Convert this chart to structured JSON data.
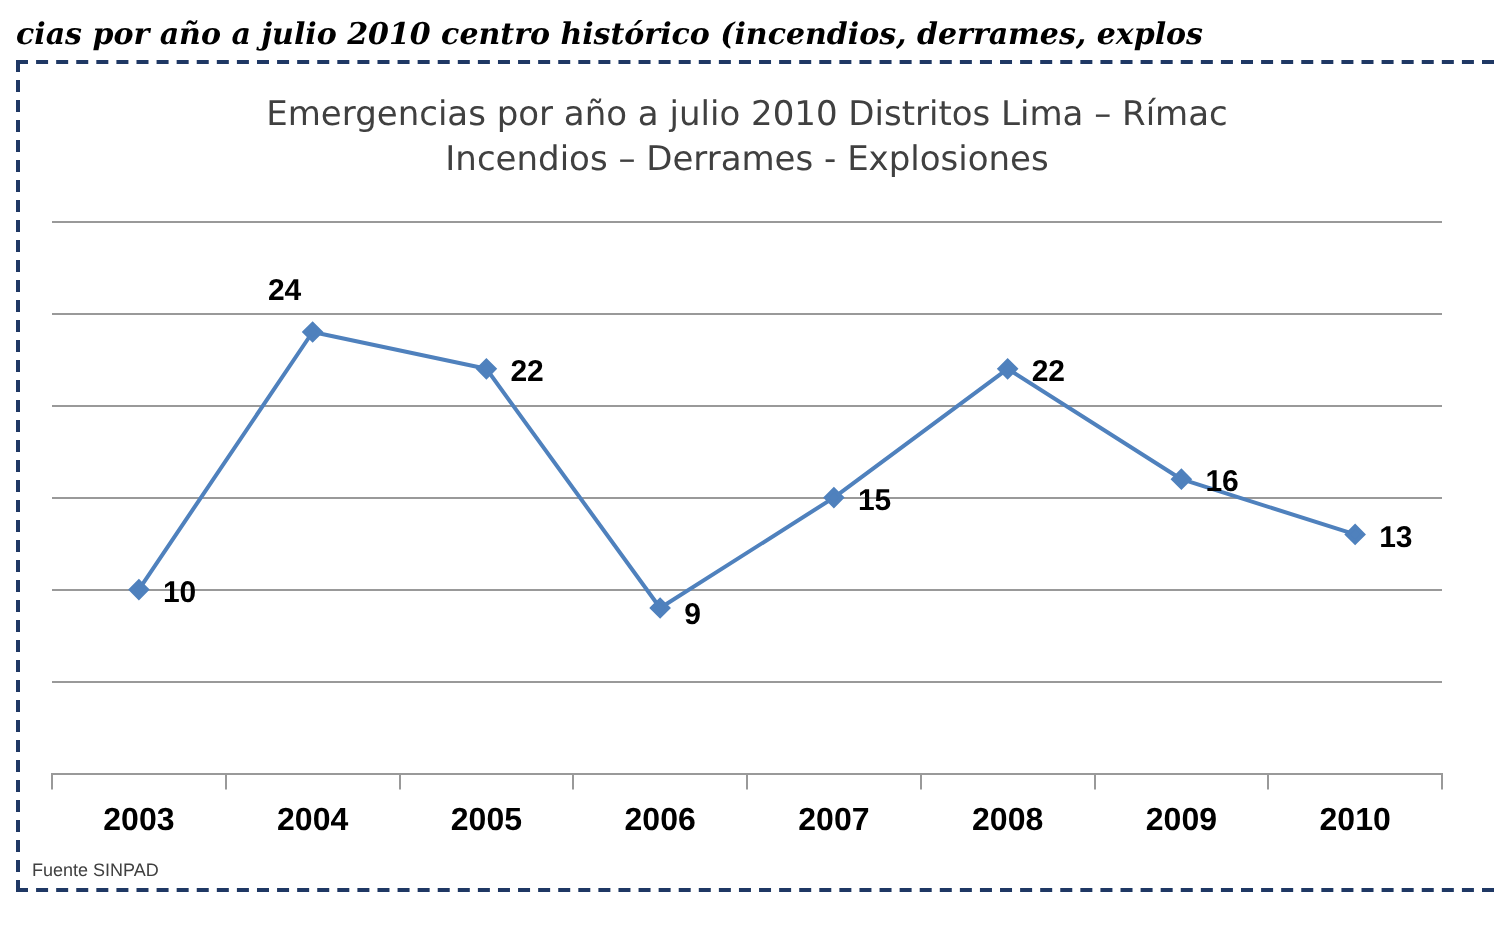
{
  "chart_data": {
    "type": "line",
    "title": "Emergencias por año a julio 2010 Distritos Lima – Rímac",
    "subtitle": "Incendios – Derrames - Explosiones",
    "categories": [
      "2003",
      "2004",
      "2005",
      "2006",
      "2007",
      "2008",
      "2009",
      "2010"
    ],
    "series": [
      {
        "color": "#4f81bd",
        "values": [
          10,
          24,
          22,
          9,
          15,
          22,
          16,
          13
        ]
      }
    ],
    "ylim": [
      0,
      30
    ],
    "yticks": [
      {
        "value": 0,
        "label": null
      },
      {
        "value": 5,
        "label": null
      },
      {
        "value": 10,
        "label": null
      },
      {
        "value": 15,
        "label": null
      },
      {
        "value": 20,
        "label": null
      },
      {
        "value": 25,
        "label": null
      },
      {
        "value": 30,
        "label": null
      }
    ],
    "tick_labels": "x",
    "grid": "y",
    "legend": false,
    "marker": "diamond",
    "line_style": "solid",
    "data_labels": true,
    "annotations": [
      "cias por año a julio 2010 centro histórico (incendios, derrames, explos",
      "Fuente SINPAD"
    ]
  }
}
